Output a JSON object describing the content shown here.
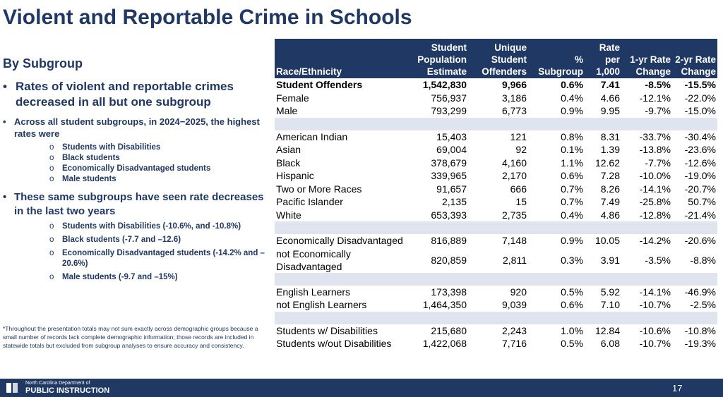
{
  "header": {
    "title": "Violent and Reportable Crime in Schools",
    "subtitle": "By Subgroup"
  },
  "bullets": [
    {
      "text": "Rates of violent and reportable crimes decreased in all but one subgroup",
      "sub": []
    },
    {
      "text": "Across all student subgroups, in 2024−2025, the highest rates were",
      "sub": [
        "Students with Disabilities",
        "Black students",
        "Economically Disadvantaged students",
        "Male students"
      ]
    },
    {
      "text": "These same subgroups have seen rate decreases in the last two years",
      "sub": [
        "Students with Disabilities (-10.6%, and -10.8%)",
        "Black students (-7.7 and –12.6)",
        "Economically Disadvantaged students (-14.2% and –20.6%)",
        "Male students (-9.7 and –15%)"
      ]
    }
  ],
  "footnote": "*Throughout the presentation totals may not sum exactly across demographic groups because a small number of records lack complete demographic information; those records are included in statewide totals but excluded from subgroup analyses to ensure accuracy and consistency.",
  "table": {
    "columns": [
      "Race/Ethnicity",
      "Student Population Estimate",
      "Unique Student Offenders",
      "% Subgroup",
      "Rate per 1,000",
      "1-yr Rate Change",
      "2-yr Rate Change"
    ],
    "groups": [
      [
        [
          "Student Offenders",
          "1,542,830",
          "9,966",
          "0.6%",
          "7.41",
          "-8.5%",
          "-15.5%"
        ],
        [
          "Female",
          "756,937",
          "3,186",
          "0.4%",
          "4.66",
          "-12.1%",
          "-22.0%"
        ],
        [
          "Male",
          "793,299",
          "6,773",
          "0.9%",
          "9.95",
          "-9.7%",
          "-15.0%"
        ]
      ],
      [
        [
          "American Indian",
          "15,403",
          "121",
          "0.8%",
          "8.31",
          "-33.7%",
          "-30.4%"
        ],
        [
          "Asian",
          "69,004",
          "92",
          "0.1%",
          "1.39",
          "-13.8%",
          "-23.6%"
        ],
        [
          "Black",
          "378,679",
          "4,160",
          "1.1%",
          "12.62",
          "-7.7%",
          "-12.6%"
        ],
        [
          "Hispanic",
          "339,965",
          "2,170",
          "0.6%",
          "7.28",
          "-10.0%",
          "-19.0%"
        ],
        [
          "Two or More Races",
          "91,657",
          "666",
          "0.7%",
          "8.26",
          "-14.1%",
          "-20.7%"
        ],
        [
          "Pacific Islander",
          "2,135",
          "15",
          "0.7%",
          "7.49",
          "-25.8%",
          "50.7%"
        ],
        [
          "White",
          "653,393",
          "2,735",
          "0.4%",
          "4.86",
          "-12.8%",
          "-21.4%"
        ]
      ],
      [
        [
          "Economically Disadvantaged",
          "816,889",
          "7,148",
          "0.9%",
          "10.05",
          "-14.2%",
          "-20.6%"
        ],
        [
          "not Economically Disadvantaged",
          "820,859",
          "2,811",
          "0.3%",
          "3.91",
          "-3.5%",
          "-8.8%"
        ]
      ],
      [
        [
          "English Learners",
          "173,398",
          "920",
          "0.5%",
          "5.92",
          "-14.1%",
          "-46.9%"
        ],
        [
          "not English Learners",
          "1,464,350",
          "9,039",
          "0.6%",
          "7.10",
          "-10.7%",
          "-2.5%"
        ]
      ],
      [
        [
          "Students w/ Disabilities",
          "215,680",
          "2,243",
          "1.0%",
          "12.84",
          "-10.6%",
          "-10.8%"
        ],
        [
          "Students w/out Disabilities",
          "1,422,068",
          "7,716",
          "0.5%",
          "6.08",
          "-10.7%",
          "-19.3%"
        ]
      ]
    ]
  },
  "footer": {
    "org_line1": "North Carolina Department of",
    "org_line2": "PUBLIC INSTRUCTION",
    "page": "17"
  }
}
